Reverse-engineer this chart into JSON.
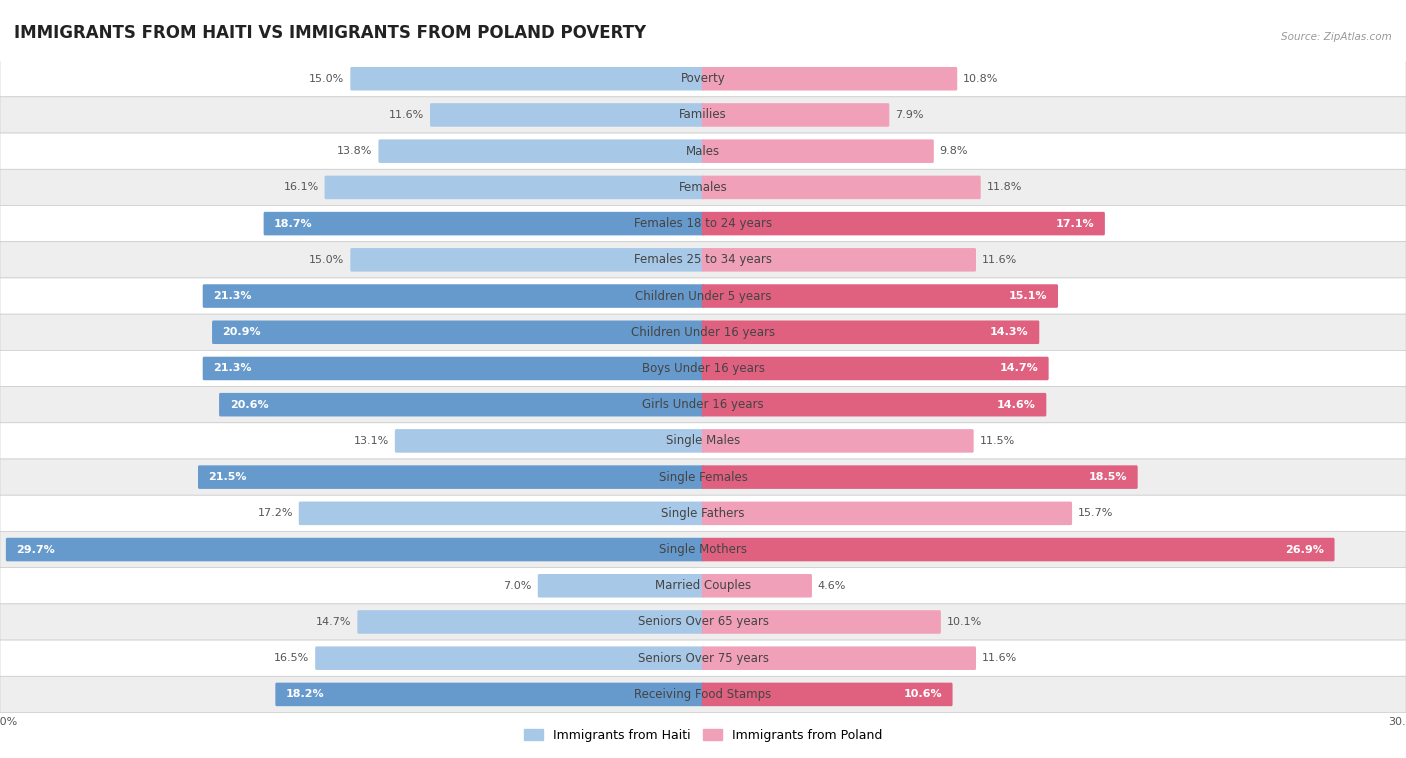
{
  "title": "IMMIGRANTS FROM HAITI VS IMMIGRANTS FROM POLAND POVERTY",
  "source": "Source: ZipAtlas.com",
  "categories": [
    "Poverty",
    "Families",
    "Males",
    "Females",
    "Females 18 to 24 years",
    "Females 25 to 34 years",
    "Children Under 5 years",
    "Children Under 16 years",
    "Boys Under 16 years",
    "Girls Under 16 years",
    "Single Males",
    "Single Females",
    "Single Fathers",
    "Single Mothers",
    "Married Couples",
    "Seniors Over 65 years",
    "Seniors Over 75 years",
    "Receiving Food Stamps"
  ],
  "haiti_values": [
    15.0,
    11.6,
    13.8,
    16.1,
    18.7,
    15.0,
    21.3,
    20.9,
    21.3,
    20.6,
    13.1,
    21.5,
    17.2,
    29.7,
    7.0,
    14.7,
    16.5,
    18.2
  ],
  "poland_values": [
    10.8,
    7.9,
    9.8,
    11.8,
    17.1,
    11.6,
    15.1,
    14.3,
    14.7,
    14.6,
    11.5,
    18.5,
    15.7,
    26.9,
    4.6,
    10.1,
    11.6,
    10.6
  ],
  "haiti_color_normal": "#a8c8e8",
  "haiti_color_highlight": "#6699cc",
  "poland_color_normal": "#f0a0b8",
  "poland_color_highlight": "#e06080",
  "row_colors": [
    "#ffffff",
    "#eeeeee"
  ],
  "title_bg_color": "#ffffff",
  "chart_bg_color": "#f0f0f0",
  "axis_limit": 30.0,
  "legend_haiti": "Immigrants from Haiti",
  "legend_poland": "Immigrants from Poland",
  "highlight_rows": [
    4,
    6,
    7,
    8,
    9,
    11,
    13,
    17
  ],
  "title_fontsize": 12,
  "label_fontsize": 8.5,
  "value_fontsize": 8,
  "legend_fontsize": 9
}
